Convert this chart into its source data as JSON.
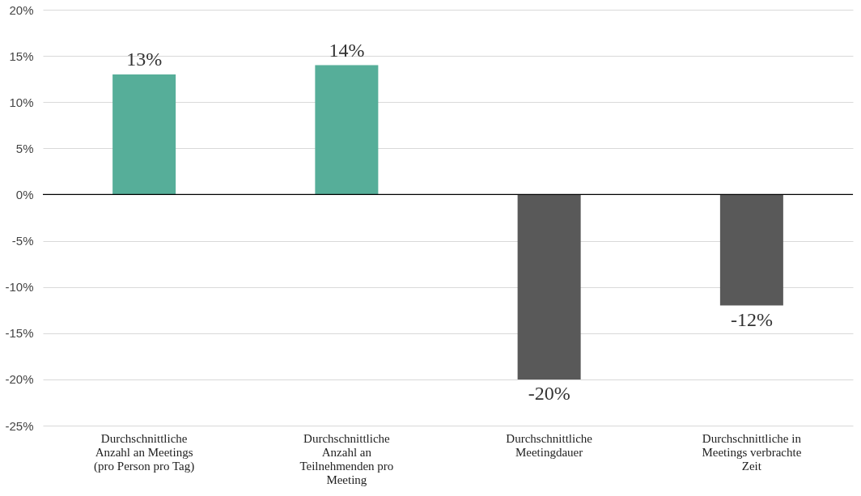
{
  "chart_data": {
    "type": "bar",
    "categories": [
      "Durchschnittliche Anzahl an Meetings (pro Person pro Tag)",
      "Durchschnittliche Anzahl an Teilnehmenden pro Meeting",
      "Durchschnittliche Meetingdauer",
      "Durchschnittliche in Meetings verbrachte Zeit"
    ],
    "values": [
      13,
      14,
      -20,
      -12
    ],
    "colors": [
      "#56ae99",
      "#56ae99",
      "#595959",
      "#595959"
    ],
    "value_labels": [
      "13%",
      "14%",
      "-20%",
      "-12%"
    ],
    "ylim": [
      -25,
      20
    ],
    "yticks": [
      {
        "value": -25,
        "label": "-25%"
      },
      {
        "value": -20,
        "label": "-20%"
      },
      {
        "value": -15,
        "label": "-15%"
      },
      {
        "value": -10,
        "label": "-10%"
      },
      {
        "value": -5,
        "label": "-5%"
      },
      {
        "value": 0,
        "label": "0%"
      },
      {
        "value": 5,
        "label": "5%"
      },
      {
        "value": 10,
        "label": "10%"
      },
      {
        "value": 15,
        "label": "15%"
      },
      {
        "value": 20,
        "label": "20%"
      }
    ],
    "ref_lines": [
      {
        "axis": "y",
        "value": 0,
        "color": "#000000"
      }
    ],
    "grid": "y"
  }
}
